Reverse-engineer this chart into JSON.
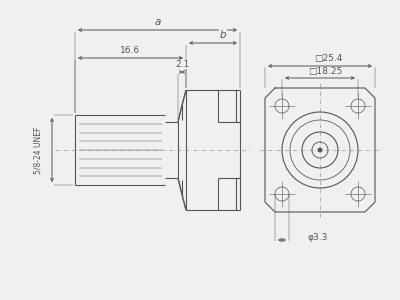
{
  "bg_color": "#f0f0f0",
  "line_color": "#555555",
  "lw": 0.8,
  "thin_lw": 0.5,
  "fig_w": 4.0,
  "fig_h": 3.0,
  "dpi": 100,
  "left_view": {
    "label_5824": "5/8-24 UNEF",
    "dim_166": "16.6",
    "dim_21": "2.1",
    "dim_a": "a",
    "dim_b": "b"
  },
  "right_view": {
    "dim_254": "□25.4",
    "dim_1825": "□18.25",
    "dim_33": "φ3.3"
  }
}
